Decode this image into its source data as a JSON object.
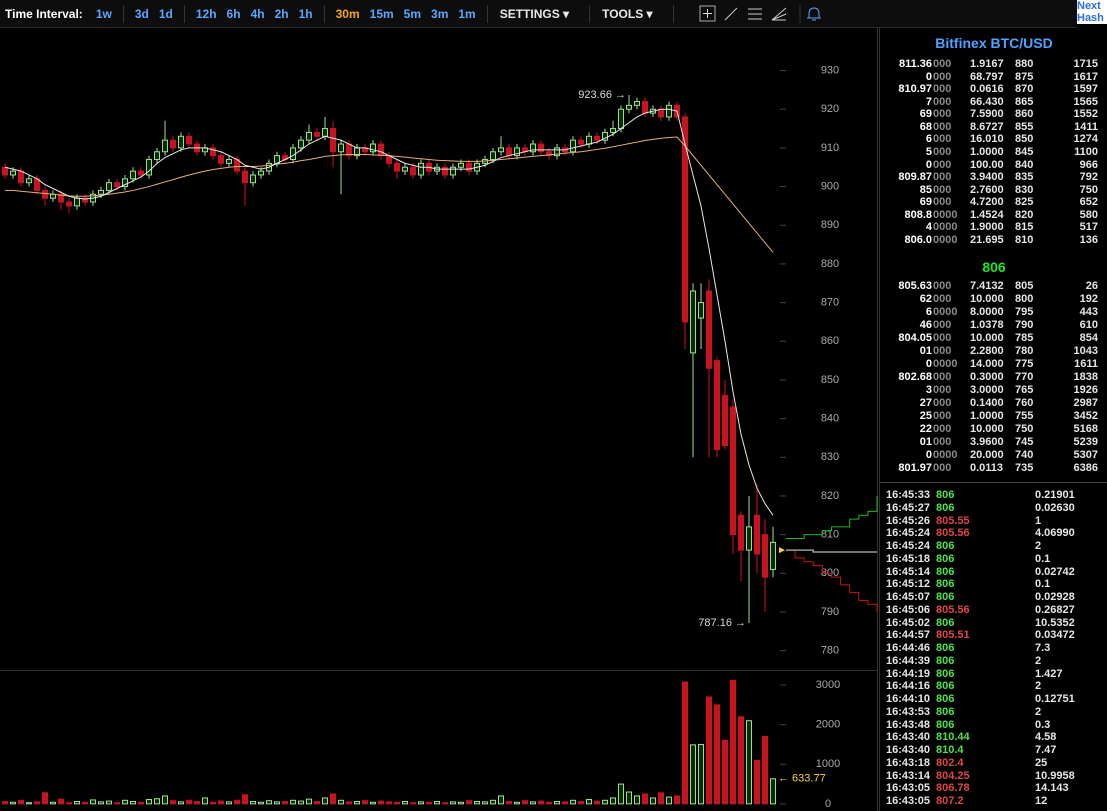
{
  "toolbar": {
    "label": "Time Interval:",
    "intervals": [
      "1w",
      "3d",
      "1d",
      "12h",
      "6h",
      "4h",
      "2h",
      "1h",
      "30m",
      "15m",
      "5m",
      "3m",
      "1m"
    ],
    "active_interval": "30m",
    "menus": [
      "SETTINGS",
      "TOOLS"
    ],
    "corner": [
      "Next",
      "Hash"
    ]
  },
  "chart_data": {
    "type": "candlestick",
    "ylim": [
      775,
      941
    ],
    "yticks": [
      780,
      790,
      800,
      810,
      820,
      830,
      840,
      850,
      860,
      870,
      880,
      890,
      900,
      910,
      920,
      930
    ],
    "volume_lim": [
      -180,
      3330
    ],
    "volume_ticks": [
      0,
      1000,
      2000,
      3000
    ],
    "up_color": "#9be28a",
    "down_color": "#c8141e",
    "ma_fast_color": "#e8e8e8",
    "ma_slow_color": "#e8b070",
    "open": [
      905,
      903,
      904,
      901,
      902,
      899,
      897,
      898,
      896,
      895,
      897,
      896,
      898,
      899,
      901,
      900,
      902,
      904,
      903,
      907,
      909,
      912,
      910,
      913,
      911,
      909,
      910,
      908,
      906,
      907,
      904,
      901,
      903,
      904,
      906,
      908,
      907,
      910,
      912,
      914,
      913,
      915,
      909,
      911,
      908,
      910,
      909,
      911,
      908,
      906,
      904,
      905,
      903,
      906,
      904,
      905,
      903,
      905,
      906,
      904,
      906,
      907,
      909,
      910,
      908,
      910,
      909,
      911,
      909,
      908,
      910,
      909,
      912,
      911,
      913,
      912,
      914,
      915,
      920,
      921,
      922,
      919,
      920,
      918,
      921,
      918,
      857,
      866,
      873,
      855,
      846,
      843,
      815,
      806,
      815,
      810,
      801
    ],
    "high": [
      906,
      905,
      905,
      903,
      903,
      900,
      899,
      899,
      897,
      898,
      898,
      899,
      900,
      902,
      902,
      903,
      905,
      905,
      908,
      910,
      917,
      913,
      914,
      914,
      912,
      911,
      911,
      909,
      908,
      908,
      905,
      904,
      905,
      907,
      909,
      909,
      911,
      913,
      916,
      915,
      918,
      917,
      912,
      912,
      911,
      911,
      912,
      912,
      909,
      907,
      906,
      906,
      907,
      907,
      906,
      906,
      906,
      907,
      907,
      907,
      908,
      910,
      913,
      911,
      911,
      911,
      912,
      912,
      910,
      911,
      911,
      913,
      913,
      914,
      914,
      915,
      917,
      921,
      923.66,
      923,
      923,
      921,
      921,
      922,
      922,
      919,
      875,
      875,
      876,
      856,
      850,
      845,
      816,
      820,
      823,
      814,
      812
    ],
    "low": [
      902,
      902,
      900,
      900,
      898,
      895,
      896,
      894,
      893,
      894,
      895,
      895,
      897,
      898,
      899,
      899,
      901,
      902,
      902,
      906,
      908,
      909,
      909,
      910,
      908,
      908,
      907,
      905,
      905,
      903,
      895,
      900,
      902,
      903,
      905,
      906,
      906,
      909,
      911,
      912,
      912,
      905,
      898,
      907,
      907,
      908,
      908,
      907,
      905,
      902,
      903,
      902,
      902,
      903,
      903,
      902,
      902,
      904,
      903,
      903,
      905,
      906,
      908,
      907,
      907,
      908,
      908,
      908,
      907,
      907,
      908,
      908,
      910,
      910,
      911,
      911,
      913,
      914,
      919,
      920,
      918,
      918,
      917,
      917,
      917,
      858,
      830,
      858,
      830,
      830,
      832,
      805,
      798,
      787.16,
      800,
      790,
      799
    ],
    "close": [
      903,
      904,
      901,
      902,
      899,
      897,
      898,
      896,
      895,
      897,
      896,
      898,
      899,
      901,
      900,
      902,
      904,
      903,
      907,
      909,
      912,
      910,
      913,
      911,
      909,
      910,
      908,
      906,
      907,
      904,
      901,
      903,
      904,
      906,
      908,
      907,
      910,
      912,
      914,
      913,
      915,
      909,
      911,
      908,
      910,
      909,
      911,
      908,
      906,
      904,
      905,
      903,
      906,
      904,
      905,
      903,
      905,
      906,
      904,
      906,
      907,
      909,
      910,
      908,
      910,
      909,
      911,
      909,
      908,
      910,
      909,
      912,
      911,
      913,
      912,
      914,
      915,
      920,
      921,
      922,
      919,
      920,
      918,
      921,
      918,
      865,
      873,
      870,
      853,
      832,
      833,
      810,
      806,
      812,
      805,
      799,
      808
    ],
    "volume": [
      60,
      40,
      90,
      30,
      50,
      280,
      40,
      120,
      30,
      60,
      40,
      100,
      50,
      70,
      30,
      90,
      60,
      40,
      110,
      130,
      200,
      80,
      50,
      90,
      60,
      150,
      40,
      70,
      50,
      90,
      230,
      60,
      40,
      80,
      50,
      60,
      90,
      70,
      120,
      60,
      150,
      250,
      90,
      50,
      60,
      80,
      40,
      70,
      50,
      40,
      60,
      30,
      50,
      40,
      60,
      30,
      50,
      40,
      80,
      60,
      50,
      90,
      200,
      60,
      40,
      80,
      50,
      70,
      40,
      60,
      50,
      90,
      60,
      110,
      70,
      90,
      150,
      500,
      300,
      200,
      250,
      150,
      280,
      170,
      200,
      3075,
      1490,
      1500,
      2700,
      2500,
      1600,
      3120,
      2200,
      2100,
      1100,
      1700,
      633.77
    ],
    "ma_fast": [
      905,
      904.5,
      904,
      903,
      902,
      900.5,
      899.5,
      898.5,
      897.5,
      897,
      896.8,
      897,
      897.5,
      898.5,
      899.5,
      900.5,
      901.5,
      902.5,
      904,
      906,
      907.5,
      908.5,
      909.5,
      910,
      910,
      910,
      909.5,
      909,
      908,
      907,
      905.5,
      905,
      904.5,
      905,
      906,
      907,
      908,
      909.5,
      911,
      912,
      913,
      912.5,
      912,
      911,
      910,
      910,
      909.5,
      909,
      908,
      907,
      906,
      905.5,
      905,
      905,
      904.5,
      904.5,
      904.5,
      904.5,
      904.5,
      905,
      905.5,
      906.5,
      907.5,
      908,
      908.5,
      909,
      909.5,
      909.5,
      909.5,
      909.5,
      909.5,
      910,
      910.5,
      911,
      911.5,
      912.5,
      913.5,
      915,
      916.5,
      918,
      919,
      919.5,
      920,
      920,
      919.5,
      911,
      903,
      895,
      884,
      872,
      860,
      847,
      836,
      828,
      822,
      818,
      815
    ],
    "ma_slow": [
      899,
      899,
      898.8,
      898.6,
      898.4,
      898.2,
      898,
      897.8,
      897.6,
      897.5,
      897.5,
      897.6,
      897.8,
      898,
      898.3,
      898.6,
      899,
      899.5,
      900,
      900.6,
      901.2,
      901.8,
      902.4,
      903,
      903.5,
      904,
      904.4,
      904.7,
      905,
      905.2,
      905.2,
      905.2,
      905.3,
      905.5,
      905.8,
      906,
      906.3,
      906.7,
      907,
      907.4,
      907.8,
      908,
      908.2,
      908.3,
      908.3,
      908.3,
      908.2,
      908.1,
      908,
      907.8,
      907.6,
      907.4,
      907.2,
      907,
      906.8,
      906.7,
      906.6,
      906.5,
      906.5,
      906.5,
      906.6,
      906.8,
      907,
      907.2,
      907.4,
      907.6,
      907.8,
      908,
      908.2,
      908.4,
      908.6,
      908.8,
      909,
      909.3,
      909.6,
      909.9,
      910.3,
      910.7,
      911.1,
      911.5,
      911.9,
      912.2,
      912.5,
      912.7,
      912.8,
      910.5,
      908,
      905.5,
      903,
      900.5,
      898,
      895.5,
      893,
      890.5,
      888,
      885.5,
      883
    ],
    "annotations": [
      {
        "value": 923.66,
        "label": "923.66 →"
      },
      {
        "value": 787.16,
        "label": "787.16 →"
      }
    ],
    "volume_label": {
      "value": 633.77,
      "label": "← 633.77"
    },
    "depth": {
      "asks": [
        809,
        809,
        810,
        810,
        811,
        812,
        812,
        814,
        815,
        816,
        820
      ],
      "bids": [
        806,
        804,
        803,
        802,
        800,
        799,
        797,
        795,
        793,
        792,
        790
      ],
      "mid": [
        806,
        806,
        806,
        805.5,
        805.5,
        805.5,
        805.5,
        805.5,
        805.5,
        805.5,
        805.5
      ]
    }
  },
  "order_book": {
    "title": "Bitfinex BTC/USD",
    "last_price": 806,
    "asks": [
      [
        [
          "811.36",
          "000"
        ],
        "1.9167",
        880,
        1715
      ],
      [
        [
          "0",
          "000"
        ],
        "68.797",
        875,
        1617
      ],
      [
        [
          "810.97",
          "000"
        ],
        "0.0616",
        870,
        1597
      ],
      [
        [
          "7",
          "000"
        ],
        "66.430",
        865,
        1565
      ],
      [
        [
          "69",
          "000"
        ],
        "7.5900",
        860,
        1552
      ],
      [
        [
          "68",
          "000"
        ],
        "8.6727",
        855,
        1411
      ],
      [
        [
          "6",
          "000"
        ],
        "16.010",
        850,
        1274
      ],
      [
        [
          "5",
          "000"
        ],
        "1.0000",
        845,
        1100
      ],
      [
        [
          "0",
          "000"
        ],
        "100.00",
        840,
        966
      ],
      [
        [
          "809.87",
          "000"
        ],
        "3.9400",
        835,
        792
      ],
      [
        [
          "85",
          "000"
        ],
        "2.7600",
        830,
        750
      ],
      [
        [
          "69",
          "000"
        ],
        "4.7200",
        825,
        652
      ],
      [
        [
          "808.8",
          "0000"
        ],
        "1.4524",
        820,
        580
      ],
      [
        [
          "4",
          "0000"
        ],
        "1.9000",
        815,
        517
      ],
      [
        [
          "806.0",
          "0000"
        ],
        "21.695",
        810,
        136
      ]
    ],
    "bids": [
      [
        [
          "805.63",
          "000"
        ],
        "7.4132",
        805,
        26
      ],
      [
        [
          "62",
          "000"
        ],
        "10.000",
        800,
        192
      ],
      [
        [
          "6",
          "0000"
        ],
        "8.0000",
        795,
        443
      ],
      [
        [
          "46",
          "000"
        ],
        "1.0378",
        790,
        610
      ],
      [
        [
          "804.05",
          "000"
        ],
        "10.000",
        785,
        854
      ],
      [
        [
          "01",
          "000"
        ],
        "2.2800",
        780,
        1043
      ],
      [
        [
          "0",
          "0000"
        ],
        "14.000",
        775,
        1611
      ],
      [
        [
          "802.68",
          "000"
        ],
        "0.3000",
        770,
        1838
      ],
      [
        [
          "3",
          "000"
        ],
        "3.0000",
        765,
        1926
      ],
      [
        [
          "27",
          "000"
        ],
        "0.1400",
        760,
        2987
      ],
      [
        [
          "25",
          "000"
        ],
        "1.0000",
        755,
        3452
      ],
      [
        [
          "22",
          "000"
        ],
        "10.000",
        750,
        5168
      ],
      [
        [
          "01",
          "000"
        ],
        "3.9600",
        745,
        5239
      ],
      [
        [
          "0",
          "0000"
        ],
        "20.000",
        740,
        5307
      ],
      [
        [
          "801.97",
          "000"
        ],
        "0.0113",
        735,
        6386
      ]
    ]
  },
  "trades": [
    [
      "16:45:33",
      "806",
      "0.21901",
      "buy"
    ],
    [
      "16:45:27",
      "806",
      "0.02630",
      "buy"
    ],
    [
      "16:45:26",
      "805.55",
      "1",
      "sell"
    ],
    [
      "16:45:24",
      "805.56",
      "4.06990",
      "sell"
    ],
    [
      "16:45:24",
      "806",
      "2",
      "buy"
    ],
    [
      "16:45:18",
      "806",
      "0.1",
      "buy"
    ],
    [
      "16:45:14",
      "806",
      "0.02742",
      "buy"
    ],
    [
      "16:45:12",
      "806",
      "0.1",
      "buy"
    ],
    [
      "16:45:07",
      "806",
      "0.02928",
      "buy"
    ],
    [
      "16:45:06",
      "805.56",
      "0.26827",
      "sell"
    ],
    [
      "16:45:02",
      "806",
      "10.5352",
      "buy"
    ],
    [
      "16:44:57",
      "805.51",
      "0.03472",
      "sell"
    ],
    [
      "16:44:46",
      "806",
      "7.3",
      "buy"
    ],
    [
      "16:44:39",
      "806",
      "2",
      "buy"
    ],
    [
      "16:44:19",
      "806",
      "1.427",
      "buy"
    ],
    [
      "16:44:16",
      "806",
      "2",
      "buy"
    ],
    [
      "16:44:10",
      "806",
      "0.12751",
      "buy"
    ],
    [
      "16:43:53",
      "806",
      "2",
      "buy"
    ],
    [
      "16:43:48",
      "806",
      "0.3",
      "buy"
    ],
    [
      "16:43:40",
      "810.44",
      "4.58",
      "buy"
    ],
    [
      "16:43:40",
      "810.4",
      "7.47",
      "buy"
    ],
    [
      "16:43:18",
      "802.4",
      "25",
      "sell"
    ],
    [
      "16:43:14",
      "804.25",
      "10.9958",
      "sell"
    ],
    [
      "16:43:05",
      "806.78",
      "14.143",
      "sell"
    ],
    [
      "16:43:05",
      "807.2",
      "12",
      "sell"
    ]
  ]
}
